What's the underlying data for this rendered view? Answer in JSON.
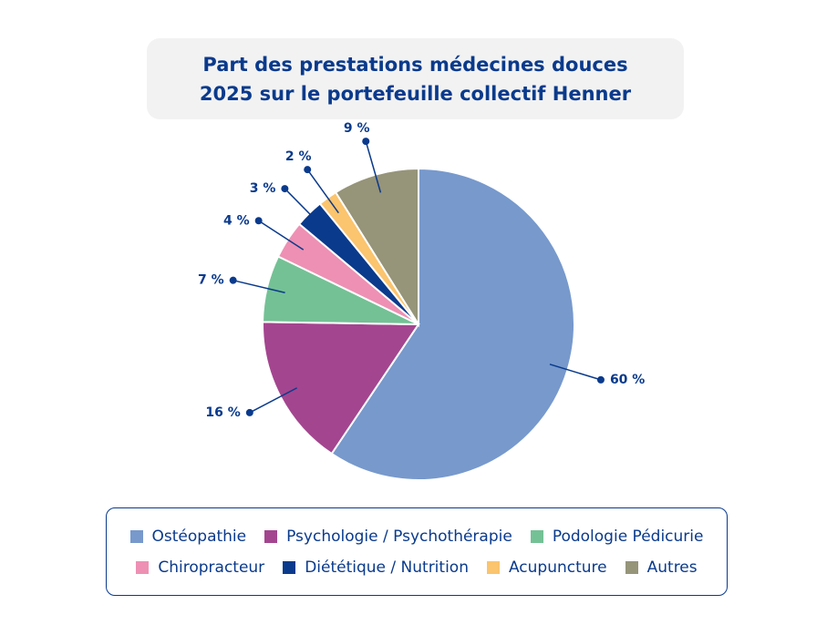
{
  "chart_data": {
    "type": "pie",
    "title": "Part des prestations médecines douces 2025 sur le portefeuille collectif Henner",
    "categories": [
      "Ostéopathie",
      "Psychologie / Psychothérapie",
      "Podologie Pédicurie",
      "Chiropracteur",
      "Diététique / Nutrition",
      "Acupuncture",
      "Autres"
    ],
    "values": [
      60,
      16,
      7,
      4,
      3,
      2,
      9
    ],
    "value_labels": [
      "60 %",
      "16 %",
      "7 %",
      "4 %",
      "3 %",
      "2 %",
      "9 %"
    ],
    "colors": [
      "#7799cc",
      "#a4458f",
      "#74c195",
      "#ee90b3",
      "#0a3a8c",
      "#fbc46e",
      "#969479"
    ]
  }
}
